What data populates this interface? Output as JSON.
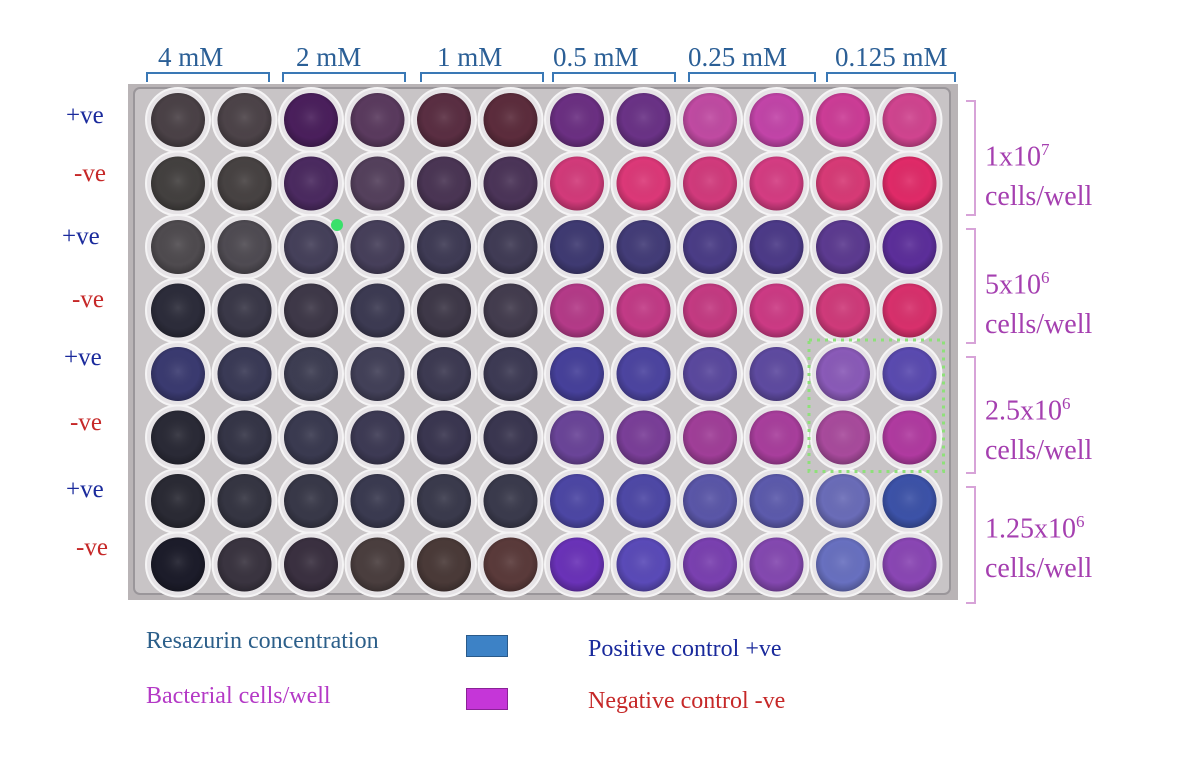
{
  "concentrations": [
    "4 mM",
    "2 mM",
    "1 mM",
    "0.5 mM",
    "0.25 mM",
    "0.125 mM"
  ],
  "row_labels": [
    "+ve",
    "-ve",
    "+ve",
    "-ve",
    "+ve",
    "-ve",
    "+ve",
    "-ve"
  ],
  "cell_densities": [
    {
      "base": "1x10",
      "exp": "7",
      "unit": "cells/well"
    },
    {
      "base": "5x10",
      "exp": "6",
      "unit": "cells/well"
    },
    {
      "base": "2.5x10",
      "exp": "6",
      "unit": "cells/well"
    },
    {
      "base": "1.25x10",
      "exp": "6",
      "unit": "cells/well"
    }
  ],
  "legend": {
    "resazurin": "Resazurin concentration",
    "bacterial": "Bacterial cells/well",
    "positive": "Positive control  +ve",
    "negative": "Negative control -ve"
  },
  "colors": {
    "resazurin_swatch": "#3d82c6",
    "bacterial_swatch": "#c536d8",
    "positive_text": "#1a2a9c",
    "negative_text": "#c62828",
    "highlight_box": "#8ee07a"
  },
  "well_colors": [
    [
      "#4a4146",
      "#4c4348",
      "#4a1f5c",
      "#5a3a5e",
      "#5a2e42",
      "#5c2c3c",
      "#6b2f82",
      "#6a3286",
      "#c04aa2",
      "#c244a8",
      "#cc3c96",
      "#d0448f"
    ],
    [
      "#43403f",
      "#474242",
      "#4b2a60",
      "#54405c",
      "#4a3554",
      "#4b3458",
      "#d23a7a",
      "#dc3878",
      "#d13a7c",
      "#d43c82",
      "#d73a76",
      "#e02a68"
    ],
    [
      "#4f4b4f",
      "#4f4b52",
      "#45405a",
      "#463f5a",
      "#3f3b55",
      "#403b55",
      "#3f3a72",
      "#433c78",
      "#4a3c86",
      "#4c3a88",
      "#5c3a90",
      "#5c2e9a"
    ],
    [
      "#2c2c3a",
      "#3a3848",
      "#3e3848",
      "#3c3a52",
      "#3e3848",
      "#433c4e",
      "#b43a88",
      "#c23a86",
      "#c43a82",
      "#cc3a84",
      "#cf3a7a",
      "#d8306c"
    ],
    [
      "#3a3a70",
      "#3a3a56",
      "#3d3d52",
      "#424058",
      "#3d3a52",
      "#3d3a54",
      "#46409a",
      "#4c44a0",
      "#5a489e",
      "#5e4aa0",
      "#8a5ab8",
      "#5a4ab0"
    ],
    [
      "#2a2a36",
      "#353547",
      "#3a3a50",
      "#3d3a54",
      "#3a3650",
      "#3a3650",
      "#6a4498",
      "#7a3e98",
      "#a03e98",
      "#a83e9c",
      "#a84a9c",
      "#b03aa0"
    ],
    [
      "#2a2a34",
      "#353542",
      "#383848",
      "#3a3a50",
      "#3a3a4c",
      "#3a3a4c",
      "#4c46a4",
      "#4e48a6",
      "#5a56a8",
      "#5c5aac",
      "#6a6cb8",
      "#3c52a8"
    ],
    [
      "#1c1c2a",
      "#3a3440",
      "#3a3040",
      "#4a3e3e",
      "#4a3a38",
      "#5a3a3a",
      "#6a32b8",
      "#5a4ab8",
      "#7a40b0",
      "#8448b0",
      "#6870c0",
      "#8a46b4"
    ]
  ],
  "highlight": {
    "col_start": 10,
    "col_end": 11,
    "row_start": 4,
    "row_end": 5
  },
  "green_dot": {
    "row": 2,
    "col": 2,
    "color": "#39e06a"
  }
}
